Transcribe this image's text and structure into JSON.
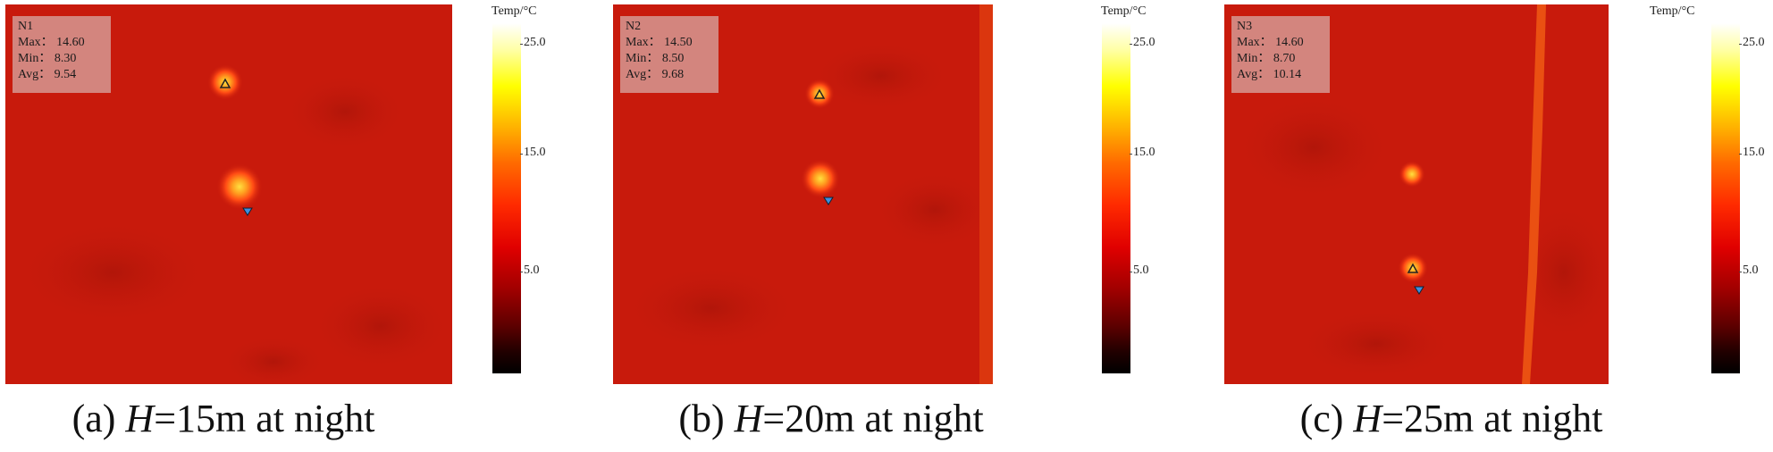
{
  "colorbar": {
    "title": "Temp/°C",
    "ticks": [
      "25.0",
      "15.0",
      "5.0"
    ]
  },
  "panels": [
    {
      "id": "N1",
      "stats": {
        "max": "Max： 14.60",
        "min": "Min： 8.30",
        "avg": "Avg： 9.54"
      },
      "caption": {
        "prefix": "(a) ",
        "var": "H",
        "suffix": "=15m at night"
      }
    },
    {
      "id": "N2",
      "stats": {
        "max": "Max： 14.50",
        "min": "Min： 8.50",
        "avg": "Avg： 9.68"
      },
      "caption": {
        "prefix": "(b) ",
        "var": "H",
        "suffix": "=20m at night"
      }
    },
    {
      "id": "N3",
      "stats": {
        "max": "Max： 14.60",
        "min": "Min： 8.70",
        "avg": "Avg： 10.14"
      },
      "caption": {
        "prefix": "(c) ",
        "var": "H",
        "suffix": "=25m at night"
      }
    }
  ],
  "colors": {
    "ground": "#c81a0c",
    "hotspot": "#ffd21e",
    "max_marker": "#222222",
    "min_marker": "#3b8fe0"
  }
}
